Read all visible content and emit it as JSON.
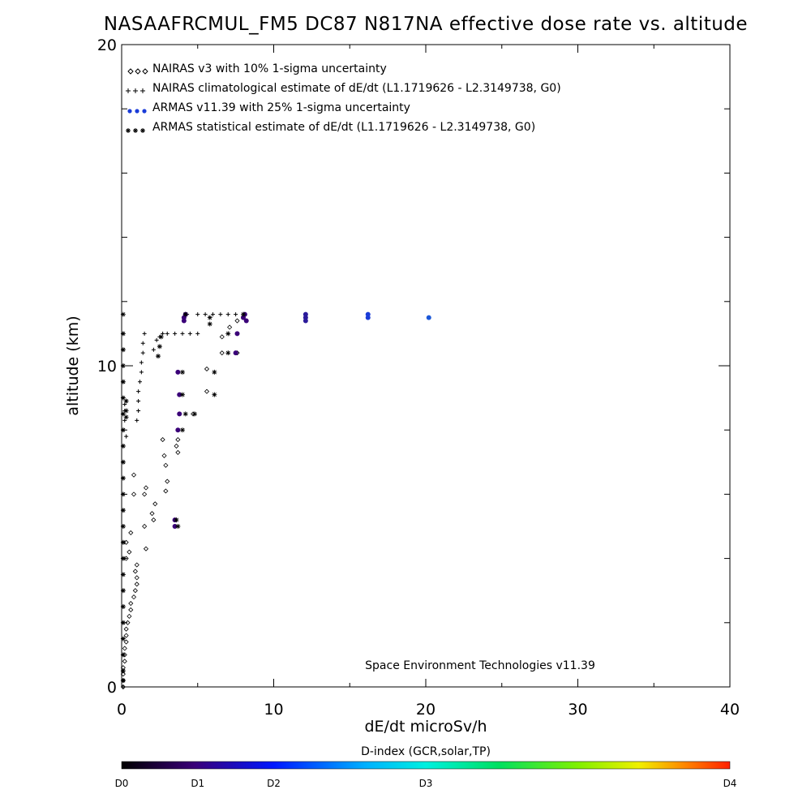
{
  "chart_data": {
    "type": "scatter",
    "title": "NASAAFRCMUL_FM5 DC87 N817NA effective dose rate vs. altitude",
    "xlabel": "dE/dt microSv/h",
    "ylabel": "altitude (km)",
    "xlim": [
      0,
      40
    ],
    "ylim": [
      0,
      20
    ],
    "x_ticks": [
      0,
      10,
      20,
      30,
      40
    ],
    "y_ticks": [
      0,
      10,
      20
    ],
    "grid": false,
    "legend_position": "top-left",
    "legend": [
      "NAIRAS v3 with 10% 1-sigma uncertainty",
      "NAIRAS climatological estimate of dE/dt (L1.1719626 - L2.3149738, G0)",
      "ARMAS v11.39 with 25% 1-sigma uncertainty",
      "ARMAS statistical estimate of dE/dt (L1.1719626 - L2.3149738, G0)"
    ],
    "annotation": "Space Environment Technologies v11.39",
    "colorbar": {
      "title": "D-index (GCR,solar,TP)",
      "labels": [
        "D0",
        "D1",
        "D2",
        "D3",
        "D4"
      ],
      "label_values": [
        0,
        1,
        2,
        3,
        4
      ],
      "label_fractions": [
        0.0,
        0.125,
        0.25,
        0.5,
        1.0
      ],
      "colors": [
        "#000000",
        "#3a0078",
        "#0018ff",
        "#00b0ff",
        "#00f0e0",
        "#00e060",
        "#80f000",
        "#f0f000",
        "#ff8000",
        "#ff2000"
      ]
    },
    "series": [
      {
        "marker": "diamond",
        "color": "#000000",
        "points": [
          [
            0.1,
            0.0
          ],
          [
            0.1,
            0.2
          ],
          [
            0.1,
            0.4
          ],
          [
            0.1,
            0.6
          ],
          [
            0.2,
            0.8
          ],
          [
            0.2,
            1.0
          ],
          [
            0.2,
            1.2
          ],
          [
            0.3,
            1.4
          ],
          [
            0.3,
            1.6
          ],
          [
            0.3,
            1.8
          ],
          [
            0.4,
            2.0
          ],
          [
            0.5,
            2.2
          ],
          [
            0.6,
            2.4
          ],
          [
            0.6,
            2.6
          ],
          [
            0.8,
            2.8
          ],
          [
            0.9,
            3.0
          ],
          [
            1.0,
            3.2
          ],
          [
            1.0,
            3.4
          ],
          [
            0.9,
            3.6
          ],
          [
            1.0,
            3.8
          ],
          [
            0.3,
            4.0
          ],
          [
            0.5,
            4.2
          ],
          [
            0.3,
            4.5
          ],
          [
            0.6,
            4.8
          ],
          [
            1.6,
            4.3
          ],
          [
            1.5,
            5.0
          ],
          [
            2.1,
            5.2
          ],
          [
            2.0,
            5.4
          ],
          [
            2.2,
            5.7
          ],
          [
            0.8,
            6.0
          ],
          [
            1.5,
            6.0
          ],
          [
            1.6,
            6.2
          ],
          [
            2.9,
            6.1
          ],
          [
            3.0,
            6.4
          ],
          [
            0.8,
            6.6
          ],
          [
            2.9,
            6.9
          ],
          [
            2.8,
            7.2
          ],
          [
            3.7,
            7.3
          ],
          [
            3.6,
            7.5
          ],
          [
            3.7,
            7.7
          ],
          [
            2.7,
            7.7
          ],
          [
            4.7,
            8.5
          ],
          [
            5.6,
            9.2
          ],
          [
            5.6,
            9.9
          ],
          [
            6.6,
            10.4
          ],
          [
            7.6,
            10.4
          ],
          [
            6.6,
            10.9
          ],
          [
            7.1,
            11.2
          ],
          [
            7.6,
            11.4
          ]
        ]
      },
      {
        "marker": "plus",
        "color": "#000000",
        "points": [
          [
            0.1,
            0.0
          ],
          [
            0.1,
            0.5
          ],
          [
            0.1,
            1.0
          ],
          [
            0.1,
            1.5
          ],
          [
            0.1,
            2.0
          ],
          [
            0.1,
            2.5
          ],
          [
            0.1,
            3.0
          ],
          [
            0.1,
            3.5
          ],
          [
            0.1,
            4.0
          ],
          [
            0.1,
            4.5
          ],
          [
            0.1,
            5.0
          ],
          [
            0.1,
            5.5
          ],
          [
            0.1,
            6.0
          ],
          [
            0.1,
            6.5
          ],
          [
            0.1,
            7.0
          ],
          [
            0.1,
            7.5
          ],
          [
            0.1,
            8.0
          ],
          [
            0.1,
            8.5
          ],
          [
            0.1,
            9.0
          ],
          [
            0.1,
            9.5
          ],
          [
            0.1,
            10.0
          ],
          [
            0.1,
            10.5
          ],
          [
            0.1,
            11.0
          ],
          [
            0.2,
            8.3
          ],
          [
            0.2,
            8.6
          ],
          [
            0.2,
            8.8
          ],
          [
            0.3,
            7.8
          ],
          [
            0.3,
            8.9
          ],
          [
            1.0,
            8.3
          ],
          [
            1.1,
            8.6
          ],
          [
            1.1,
            8.9
          ],
          [
            1.1,
            9.2
          ],
          [
            1.2,
            9.5
          ],
          [
            1.3,
            9.8
          ],
          [
            1.3,
            10.1
          ],
          [
            1.4,
            10.4
          ],
          [
            1.4,
            10.7
          ],
          [
            1.5,
            11.0
          ],
          [
            2.1,
            10.5
          ],
          [
            2.3,
            10.8
          ],
          [
            2.5,
            10.9
          ],
          [
            2.7,
            11.0
          ],
          [
            3.0,
            11.0
          ],
          [
            3.5,
            11.0
          ],
          [
            4.0,
            11.0
          ],
          [
            4.5,
            11.0
          ],
          [
            5.0,
            11.0
          ],
          [
            4.3,
            11.6
          ],
          [
            5.0,
            11.6
          ],
          [
            5.5,
            11.6
          ],
          [
            6.0,
            11.6
          ],
          [
            6.5,
            11.6
          ],
          [
            7.0,
            11.6
          ],
          [
            7.5,
            11.6
          ]
        ]
      },
      {
        "marker": "dot",
        "color": "#3a0078",
        "points": [
          [
            3.5,
            5.0
          ],
          [
            3.5,
            5.2
          ],
          [
            3.7,
            8.0
          ],
          [
            3.8,
            8.5
          ],
          [
            3.8,
            9.1
          ],
          [
            3.7,
            9.8
          ],
          [
            4.1,
            11.5
          ],
          [
            4.2,
            11.6
          ],
          [
            4.1,
            11.4
          ],
          [
            7.5,
            10.4
          ],
          [
            7.6,
            11.0
          ],
          [
            8.0,
            11.5
          ],
          [
            8.1,
            11.6
          ],
          [
            8.2,
            11.4
          ]
        ]
      },
      {
        "marker": "dot",
        "color": "#2b1a9a",
        "points": [
          [
            12.1,
            11.5
          ],
          [
            12.1,
            11.6
          ],
          [
            12.1,
            11.4
          ]
        ]
      },
      {
        "marker": "dot",
        "color": "#1a3cd8",
        "points": [
          [
            16.2,
            11.5
          ],
          [
            16.2,
            11.6
          ]
        ]
      },
      {
        "marker": "dot",
        "color": "#1c58d8",
        "points": [
          [
            20.2,
            11.5
          ]
        ]
      },
      {
        "marker": "asterisk",
        "color": "#000000",
        "points": [
          [
            0.1,
            0.2
          ],
          [
            0.1,
            0.5
          ],
          [
            0.1,
            1.0
          ],
          [
            0.1,
            1.5
          ],
          [
            0.1,
            2.0
          ],
          [
            0.1,
            2.5
          ],
          [
            0.1,
            3.0
          ],
          [
            0.1,
            3.5
          ],
          [
            0.1,
            4.0
          ],
          [
            0.1,
            4.5
          ],
          [
            0.1,
            5.0
          ],
          [
            0.1,
            5.5
          ],
          [
            0.1,
            6.0
          ],
          [
            0.1,
            6.5
          ],
          [
            0.1,
            7.0
          ],
          [
            0.1,
            7.5
          ],
          [
            0.1,
            8.0
          ],
          [
            0.1,
            8.5
          ],
          [
            0.1,
            9.0
          ],
          [
            0.1,
            9.5
          ],
          [
            0.1,
            10.0
          ],
          [
            0.1,
            10.5
          ],
          [
            0.1,
            11.0
          ],
          [
            0.1,
            11.6
          ],
          [
            0.3,
            8.4
          ],
          [
            0.3,
            8.6
          ],
          [
            0.3,
            8.9
          ],
          [
            2.4,
            10.3
          ],
          [
            2.5,
            10.6
          ],
          [
            2.6,
            10.9
          ],
          [
            3.7,
            5.0
          ],
          [
            3.6,
            5.2
          ],
          [
            4.0,
            8.0
          ],
          [
            4.2,
            8.5
          ],
          [
            4.8,
            8.5
          ],
          [
            4.0,
            9.1
          ],
          [
            6.1,
            9.1
          ],
          [
            6.1,
            9.8
          ],
          [
            4.0,
            9.8
          ],
          [
            7.0,
            10.4
          ],
          [
            7.0,
            11.0
          ],
          [
            5.8,
            11.3
          ],
          [
            5.8,
            11.5
          ],
          [
            4.2,
            11.6
          ],
          [
            8.0,
            11.6
          ]
        ]
      }
    ]
  }
}
